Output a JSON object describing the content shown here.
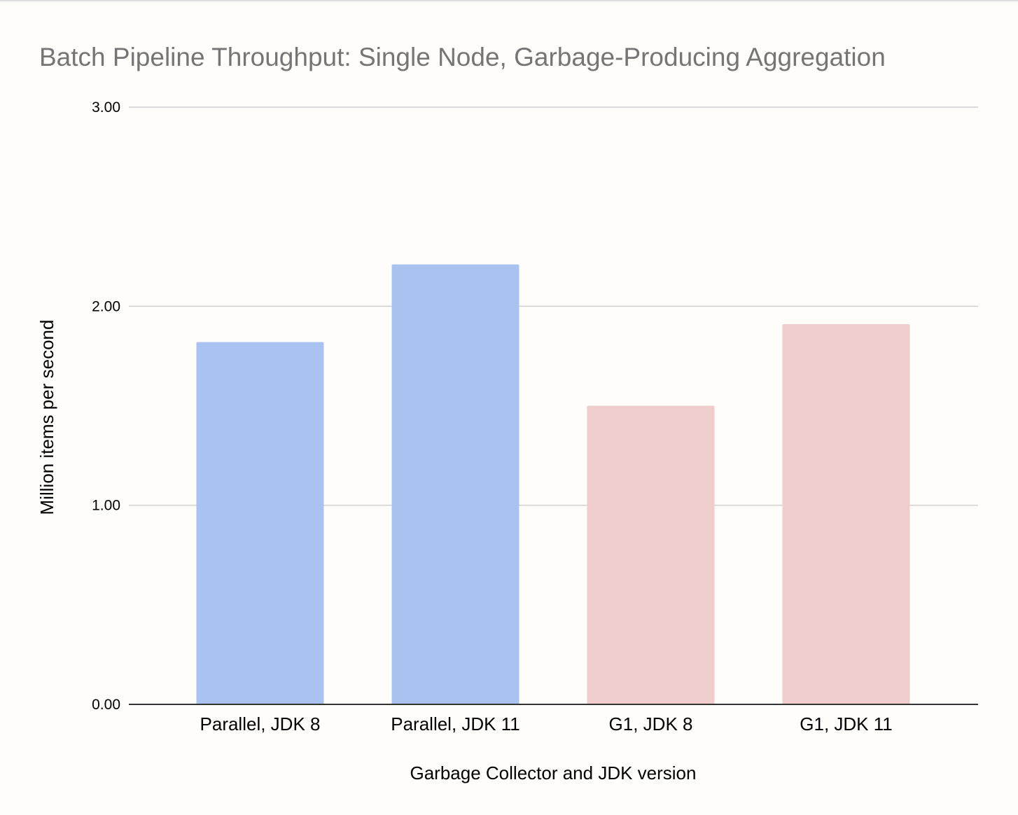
{
  "chart_data": {
    "type": "bar",
    "title": "Batch Pipeline Throughput: Single Node, Garbage-Producing Aggregation",
    "xlabel": "Garbage Collector and JDK version",
    "ylabel": "Million items per second",
    "ylim": [
      0,
      3
    ],
    "yticks": [
      "0.00",
      "1.00",
      "2.00",
      "3.00"
    ],
    "categories": [
      "Parallel, JDK 8",
      "Parallel, JDK 11",
      "G1, JDK 8",
      "G1, JDK 11"
    ],
    "values": [
      1.82,
      2.21,
      1.5,
      1.91
    ],
    "bar_colors": [
      "#a9c2ef",
      "#a9c2ef",
      "#eecdcc",
      "#eecdcc"
    ],
    "grid": true,
    "legend": "none"
  },
  "colors": {
    "background": "#fefdf9",
    "gridline": "#cfcfcf",
    "baseline": "#333333",
    "title": "#757575"
  }
}
